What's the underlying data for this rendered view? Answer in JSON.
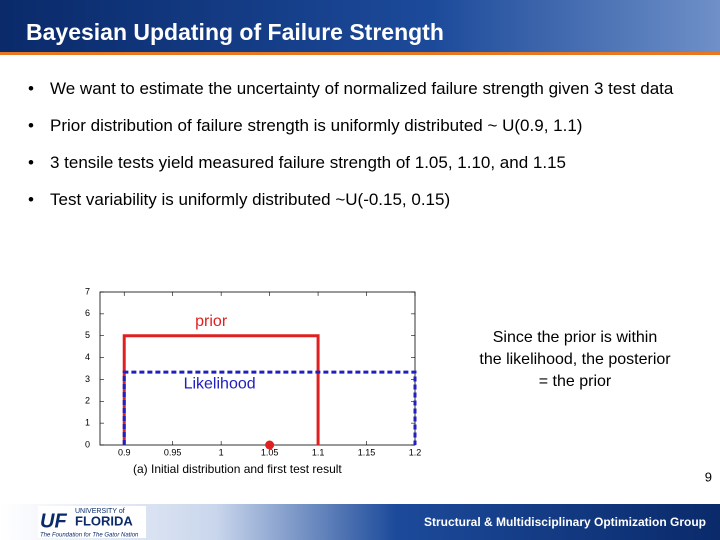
{
  "slide": {
    "title": "Bayesian Updating of Failure Strength",
    "bullets": [
      "We want to estimate the uncertainty of normalized failure strength given 3 test data",
      "Prior distribution of failure strength is uniformly distributed ~ U(0.9, 1.1)",
      "3 tensile tests yield measured failure strength of 1.05, 1.10, and 1.15",
      "Test variability is uniformly distributed ~U(-0.15, 0.15)"
    ],
    "note": [
      "Since the prior is within",
      "the likelihood, the posterior",
      "= the prior"
    ],
    "page_number": "9",
    "footer": "Structural & Multidisciplinary Optimization Group",
    "logo": {
      "mark": "UF",
      "line1": "UNIVERSITY of",
      "line2": "FLORIDA",
      "tagline": "The Foundation for The Gator Nation"
    }
  },
  "chart_data": {
    "type": "line",
    "caption": "(a) Initial distribution and first test result",
    "xlim": [
      0.875,
      1.2
    ],
    "xticks": [
      0.9,
      0.95,
      1,
      1.05,
      1.1,
      1.15,
      1.2
    ],
    "ylim": [
      0,
      7
    ],
    "yticks": [
      0,
      1,
      2,
      3,
      4,
      5,
      6,
      7
    ],
    "series": [
      {
        "name": "prior",
        "color": "#e02020",
        "x": [
          0.9,
          0.9,
          1.1,
          1.1
        ],
        "values": [
          0,
          5,
          5,
          0
        ]
      },
      {
        "name": "Likelihood",
        "color": "#2020c0",
        "x": [
          0.9,
          0.9,
          1.2,
          1.2
        ],
        "values": [
          0,
          3.333,
          3.333,
          0
        ],
        "dashed": true
      }
    ],
    "points": {
      "color": "#e02020",
      "x": [
        1.05
      ],
      "values": [
        0
      ]
    }
  }
}
